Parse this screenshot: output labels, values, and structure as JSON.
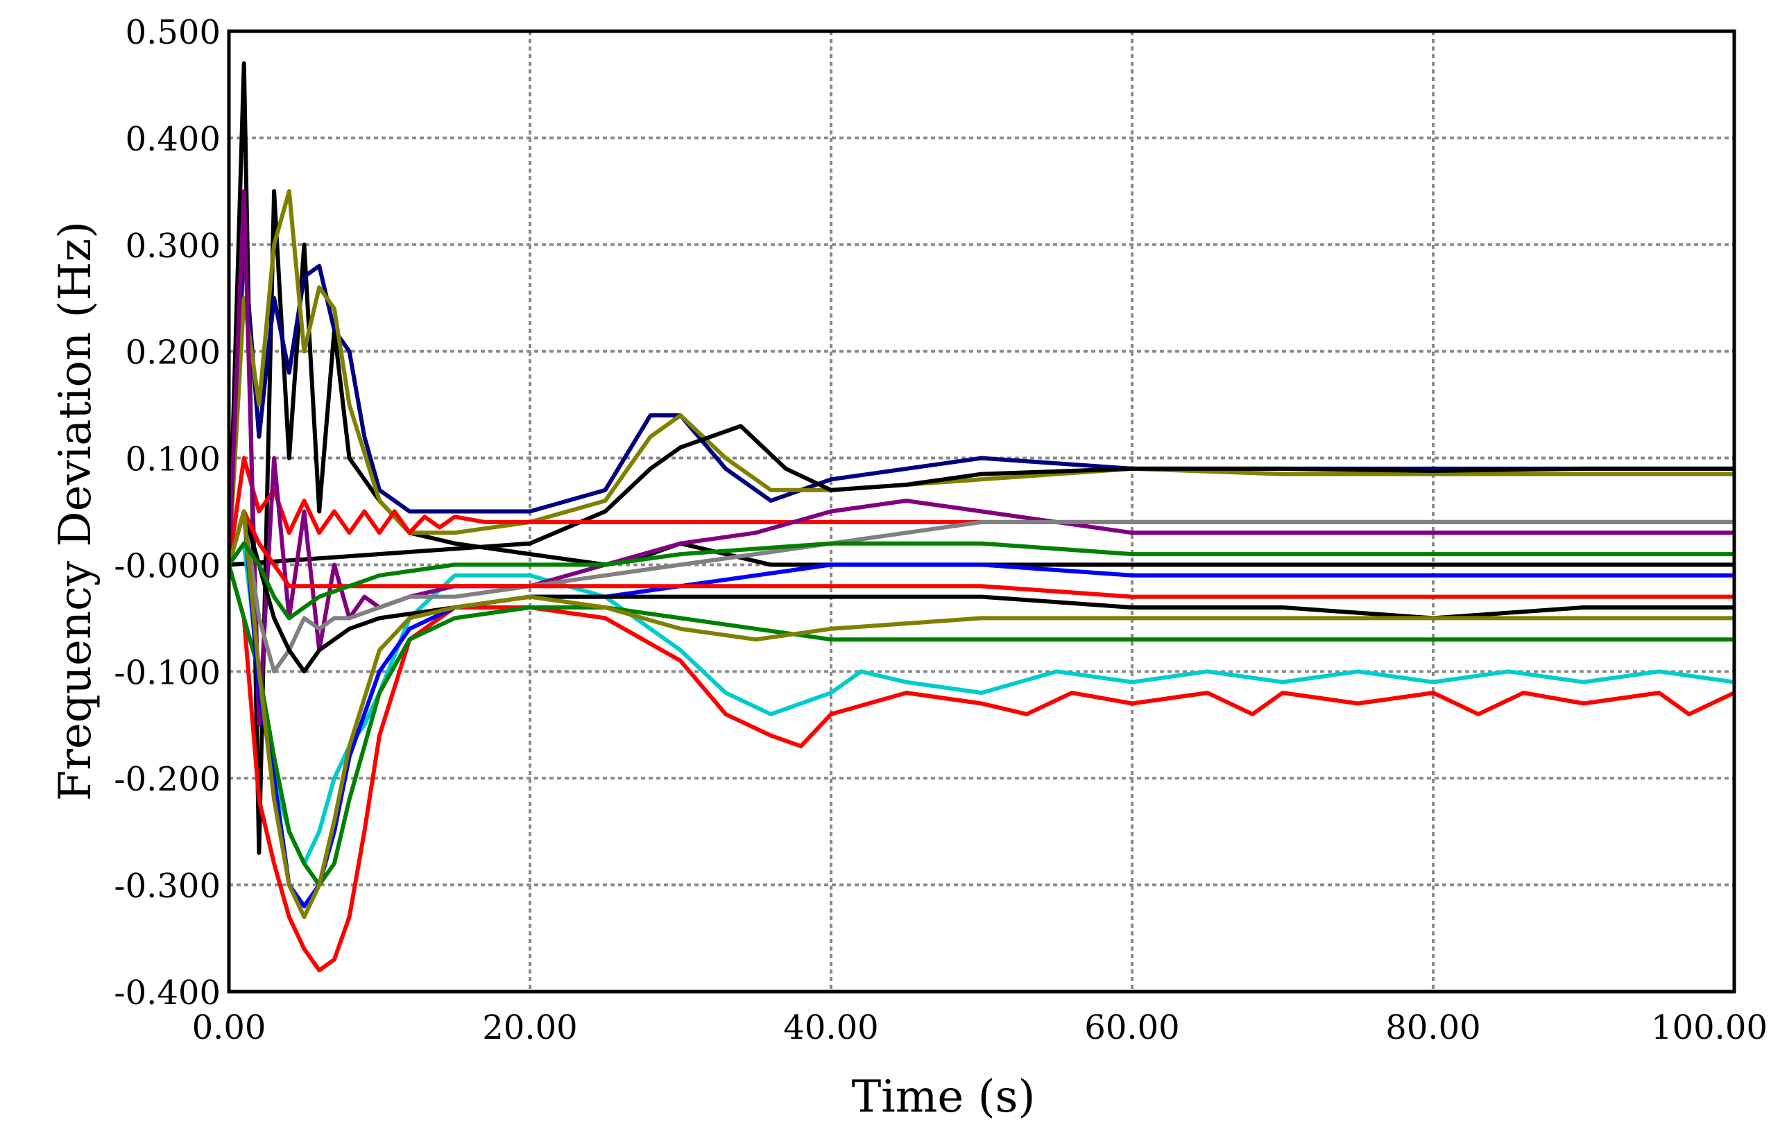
{
  "chart_data": {
    "type": "line",
    "title": "",
    "xlabel": "Time (s)",
    "ylabel": "Frequency Deviation (Hz)",
    "xlim": [
      0,
      100
    ],
    "ylim": [
      -0.4,
      0.5
    ],
    "x_ticks": [
      0,
      20,
      40,
      60,
      80,
      100
    ],
    "x_tick_labels": [
      "0.00",
      "20.00",
      "40.00",
      "60.00",
      "80.00",
      "100.00"
    ],
    "y_ticks": [
      0.5,
      0.4,
      0.3,
      0.2,
      0.1,
      0.0,
      -0.1,
      -0.2,
      -0.3,
      -0.4
    ],
    "y_tick_labels": [
      "0.500",
      "0.400",
      "0.300",
      "0.200",
      "0.100",
      "-0.000",
      "-0.100",
      "-0.200",
      "-0.300",
      "-0.400"
    ],
    "grid": true,
    "legend": "none",
    "series": [
      {
        "color": "#000000",
        "x": [
          0,
          1,
          2,
          3,
          4,
          5,
          6,
          7,
          8,
          10,
          12,
          15,
          20,
          25,
          28,
          30,
          33,
          36,
          40,
          50,
          60,
          70,
          80,
          90,
          100
        ],
        "y": [
          0,
          0.47,
          -0.27,
          0.35,
          0.1,
          0.3,
          0.05,
          0.22,
          0.1,
          0.06,
          0.03,
          0.02,
          0.01,
          0.0,
          0.01,
          0.02,
          0.01,
          0.0,
          0.0,
          0.0,
          0.0,
          0.0,
          0.0,
          0.0,
          0.0
        ]
      },
      {
        "color": "#000080",
        "x": [
          0,
          1,
          2,
          3,
          4,
          5,
          6,
          7,
          8,
          9,
          10,
          12,
          15,
          20,
          25,
          28,
          30,
          33,
          36,
          40,
          50,
          60,
          70,
          80,
          90,
          100
        ],
        "y": [
          0,
          0.3,
          0.12,
          0.25,
          0.18,
          0.27,
          0.28,
          0.22,
          0.2,
          0.12,
          0.07,
          0.05,
          0.05,
          0.05,
          0.07,
          0.14,
          0.14,
          0.09,
          0.06,
          0.08,
          0.1,
          0.09,
          0.09,
          0.09,
          0.09,
          0.09
        ]
      },
      {
        "color": "#808000",
        "x": [
          0,
          1,
          2,
          3,
          4,
          5,
          6,
          7,
          8,
          10,
          12,
          15,
          20,
          25,
          28,
          30,
          33,
          36,
          40,
          50,
          60,
          70,
          80,
          90,
          100
        ],
        "y": [
          0,
          0.25,
          0.15,
          0.3,
          0.35,
          0.2,
          0.26,
          0.24,
          0.15,
          0.06,
          0.03,
          0.03,
          0.04,
          0.06,
          0.12,
          0.14,
          0.1,
          0.07,
          0.07,
          0.08,
          0.09,
          0.085,
          0.085,
          0.085,
          0.085
        ]
      },
      {
        "color": "#000000",
        "x": [
          0,
          20,
          25,
          28,
          30,
          34,
          37,
          40,
          45,
          50,
          60,
          70,
          80,
          90,
          100
        ],
        "y": [
          0,
          0.02,
          0.05,
          0.09,
          0.11,
          0.13,
          0.09,
          0.07,
          0.075,
          0.085,
          0.09,
          0.09,
          0.088,
          0.09,
          0.09
        ]
      },
      {
        "color": "#ff0000",
        "x": [
          0,
          1,
          2,
          3,
          4,
          5,
          6,
          7,
          8,
          9,
          10,
          12,
          15,
          20,
          25,
          30,
          33,
          36,
          38,
          40,
          45,
          50,
          53,
          56,
          60,
          65,
          68,
          70,
          75,
          80,
          83,
          86,
          90,
          95,
          97,
          100
        ],
        "y": [
          0,
          -0.05,
          -0.22,
          -0.28,
          -0.33,
          -0.36,
          -0.38,
          -0.37,
          -0.33,
          -0.25,
          -0.16,
          -0.07,
          -0.04,
          -0.04,
          -0.05,
          -0.09,
          -0.14,
          -0.16,
          -0.17,
          -0.14,
          -0.12,
          -0.13,
          -0.14,
          -0.12,
          -0.13,
          -0.12,
          -0.14,
          -0.12,
          -0.13,
          -0.12,
          -0.14,
          -0.12,
          -0.13,
          -0.12,
          -0.14,
          -0.12
        ]
      },
      {
        "color": "#ff0000",
        "x": [
          0,
          1,
          2,
          3,
          4,
          5,
          6,
          7,
          8,
          9,
          10,
          11,
          12,
          13,
          14,
          15,
          17,
          20,
          25,
          30,
          35,
          40,
          50,
          60,
          70,
          80,
          90,
          100
        ],
        "y": [
          0,
          0.1,
          0.05,
          0.07,
          0.03,
          0.06,
          0.03,
          0.05,
          0.03,
          0.05,
          0.03,
          0.05,
          0.03,
          0.045,
          0.035,
          0.045,
          0.04,
          0.04,
          0.04,
          0.04,
          0.04,
          0.04,
          0.04,
          0.04,
          0.04,
          0.04,
          0.04,
          0.04
        ]
      },
      {
        "color": "#00cccc",
        "x": [
          0,
          1,
          2,
          3,
          4,
          5,
          6,
          7,
          8,
          9,
          10,
          12,
          15,
          20,
          25,
          30,
          33,
          36,
          40,
          42,
          45,
          50,
          55,
          60,
          65,
          70,
          75,
          80,
          85,
          90,
          95,
          100
        ],
        "y": [
          0,
          0.02,
          -0.1,
          -0.2,
          -0.25,
          -0.28,
          -0.25,
          -0.2,
          -0.17,
          -0.15,
          -0.12,
          -0.05,
          -0.01,
          -0.01,
          -0.03,
          -0.08,
          -0.12,
          -0.14,
          -0.12,
          -0.1,
          -0.11,
          -0.12,
          -0.1,
          -0.11,
          -0.1,
          -0.11,
          -0.1,
          -0.11,
          -0.1,
          -0.11,
          -0.1,
          -0.11
        ]
      },
      {
        "color": "#800080",
        "x": [
          0,
          1,
          2,
          3,
          4,
          5,
          6,
          7,
          8,
          9,
          10,
          12,
          15,
          20,
          25,
          30,
          35,
          40,
          45,
          50,
          60,
          70,
          80,
          90,
          100
        ],
        "y": [
          0,
          0.35,
          -0.15,
          0.1,
          -0.05,
          0.05,
          -0.08,
          0.0,
          -0.05,
          -0.03,
          -0.04,
          -0.03,
          -0.02,
          -0.02,
          0.0,
          0.02,
          0.03,
          0.05,
          0.06,
          0.05,
          0.03,
          0.03,
          0.03,
          0.03,
          0.03
        ]
      },
      {
        "color": "#008000",
        "x": [
          0,
          1,
          2,
          3,
          4,
          5,
          6,
          7,
          8,
          10,
          12,
          15,
          20,
          25,
          30,
          35,
          40,
          45,
          50,
          60,
          70,
          80,
          90,
          100
        ],
        "y": [
          0,
          -0.05,
          -0.1,
          -0.18,
          -0.25,
          -0.28,
          -0.3,
          -0.28,
          -0.22,
          -0.12,
          -0.07,
          -0.05,
          -0.04,
          -0.04,
          -0.05,
          -0.06,
          -0.07,
          -0.07,
          -0.07,
          -0.07,
          -0.07,
          -0.07,
          -0.07,
          -0.07
        ]
      },
      {
        "color": "#808080",
        "x": [
          0,
          1,
          2,
          3,
          4,
          5,
          6,
          7,
          8,
          10,
          12,
          15,
          20,
          25,
          30,
          35,
          40,
          45,
          50,
          60,
          70,
          80,
          90,
          100
        ],
        "y": [
          0,
          0.05,
          -0.05,
          -0.1,
          -0.08,
          -0.05,
          -0.06,
          -0.05,
          -0.05,
          -0.04,
          -0.03,
          -0.03,
          -0.02,
          -0.01,
          0.0,
          0.01,
          0.02,
          0.03,
          0.04,
          0.04,
          0.04,
          0.04,
          0.04,
          0.04
        ]
      },
      {
        "color": "#0000ff",
        "x": [
          0,
          1,
          2,
          3,
          4,
          5,
          6,
          7,
          8,
          10,
          12,
          15,
          20,
          25,
          30,
          35,
          40,
          45,
          50,
          60,
          70,
          80,
          90,
          100
        ],
        "y": [
          0,
          0.05,
          -0.12,
          -0.2,
          -0.3,
          -0.32,
          -0.3,
          -0.25,
          -0.18,
          -0.1,
          -0.06,
          -0.04,
          -0.03,
          -0.03,
          -0.02,
          -0.01,
          0.0,
          0.0,
          0.0,
          -0.01,
          -0.01,
          -0.01,
          -0.01,
          -0.01
        ]
      },
      {
        "color": "#000000",
        "x": [
          0,
          1,
          2,
          3,
          4,
          5,
          6,
          8,
          10,
          15,
          20,
          25,
          30,
          40,
          50,
          60,
          70,
          80,
          90,
          100
        ],
        "y": [
          0,
          0.05,
          0.0,
          -0.05,
          -0.08,
          -0.1,
          -0.08,
          -0.06,
          -0.05,
          -0.04,
          -0.03,
          -0.03,
          -0.03,
          -0.03,
          -0.03,
          -0.04,
          -0.04,
          -0.05,
          -0.04,
          -0.04
        ]
      },
      {
        "color": "#ff0000",
        "x": [
          0,
          1,
          2,
          3,
          4,
          5,
          6,
          8,
          10,
          15,
          20,
          25,
          30,
          40,
          50,
          60,
          70,
          80,
          90,
          100
        ],
        "y": [
          0,
          0.05,
          0.02,
          0.0,
          -0.02,
          -0.02,
          -0.02,
          -0.02,
          -0.02,
          -0.02,
          -0.02,
          -0.02,
          -0.02,
          -0.02,
          -0.02,
          -0.03,
          -0.03,
          -0.03,
          -0.03,
          -0.03
        ]
      },
      {
        "color": "#808000",
        "x": [
          0,
          1,
          2,
          3,
          4,
          5,
          6,
          7,
          8,
          10,
          12,
          15,
          20,
          25,
          30,
          35,
          40,
          50,
          60,
          70,
          80,
          90,
          100
        ],
        "y": [
          0,
          0.05,
          -0.1,
          -0.22,
          -0.3,
          -0.33,
          -0.3,
          -0.24,
          -0.17,
          -0.08,
          -0.05,
          -0.04,
          -0.03,
          -0.04,
          -0.06,
          -0.07,
          -0.06,
          -0.05,
          -0.05,
          -0.05,
          -0.05,
          -0.05,
          -0.05
        ]
      },
      {
        "color": "#008000",
        "x": [
          0,
          1,
          2,
          3,
          4,
          5,
          6,
          8,
          10,
          15,
          20,
          25,
          30,
          40,
          50,
          60,
          70,
          80,
          90,
          100
        ],
        "y": [
          0,
          0.02,
          0.0,
          -0.03,
          -0.05,
          -0.04,
          -0.03,
          -0.02,
          -0.01,
          0.0,
          0.0,
          0.0,
          0.01,
          0.02,
          0.02,
          0.01,
          0.01,
          0.01,
          0.01,
          0.01
        ]
      }
    ]
  }
}
